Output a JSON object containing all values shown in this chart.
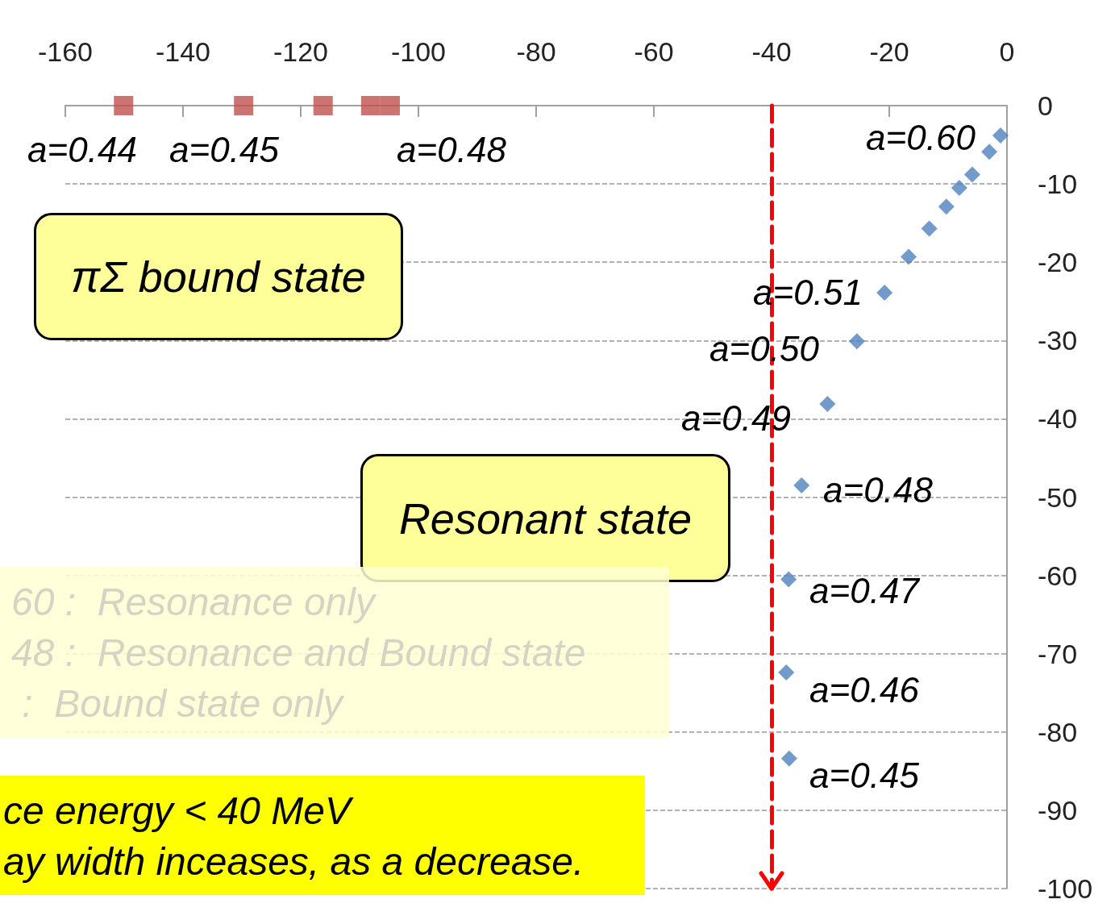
{
  "chart_data": {
    "type": "scatter",
    "series": [
      {
        "color": "#4f81bd",
        "marker": "diamond",
        "x": [
          -1.1,
          -3.0,
          -5.9,
          -8.1,
          -10.3,
          -13.2,
          -16.7,
          -20.8,
          -25.5,
          -30.5,
          -34.9,
          -37.1,
          -37.5,
          -37.0
        ],
        "values": [
          -3.8,
          -5.9,
          -8.8,
          -10.5,
          -12.9,
          -15.7,
          -19.3,
          -23.9,
          -30.1,
          -38.1,
          -48.5,
          -60.5,
          -72.4,
          -83.4
        ]
      },
      {
        "color": "#c0504d",
        "marker": "square",
        "x": [
          -150.1,
          -129.7,
          -116.2,
          -108.1,
          -104.8
        ],
        "values": [
          0,
          0,
          0,
          0,
          0
        ]
      }
    ],
    "xlim": [
      -160,
      0
    ],
    "xticks": [
      -160,
      -140,
      -120,
      -100,
      -80,
      -60,
      -40,
      -20,
      0
    ],
    "ylim": [
      -100,
      0
    ],
    "yticks": [
      0,
      -10,
      -20,
      -30,
      -40,
      -50,
      -60,
      -70,
      -80,
      -90,
      -100
    ],
    "grid": "y",
    "ref_lines": [
      {
        "axis": "x",
        "value": -40,
        "color": "#ff0000",
        "line_style": "dashed"
      }
    ],
    "annotations": [
      "a=0.44",
      "a=0.45",
      "a=0.48",
      "a=0.60",
      "a=0.51",
      "a=0.50",
      "a=0.49",
      "a=0.48",
      "a=0.47",
      "a=0.46",
      "a=0.45",
      "πΣ bound state",
      "Resonant state",
      "60 :  Resonance only",
      "48 :  Resonance and Bound state",
      " :  Bound state only",
      "ce energy < 40 MeV",
      "ay width inceases, as a decrease."
    ]
  }
}
